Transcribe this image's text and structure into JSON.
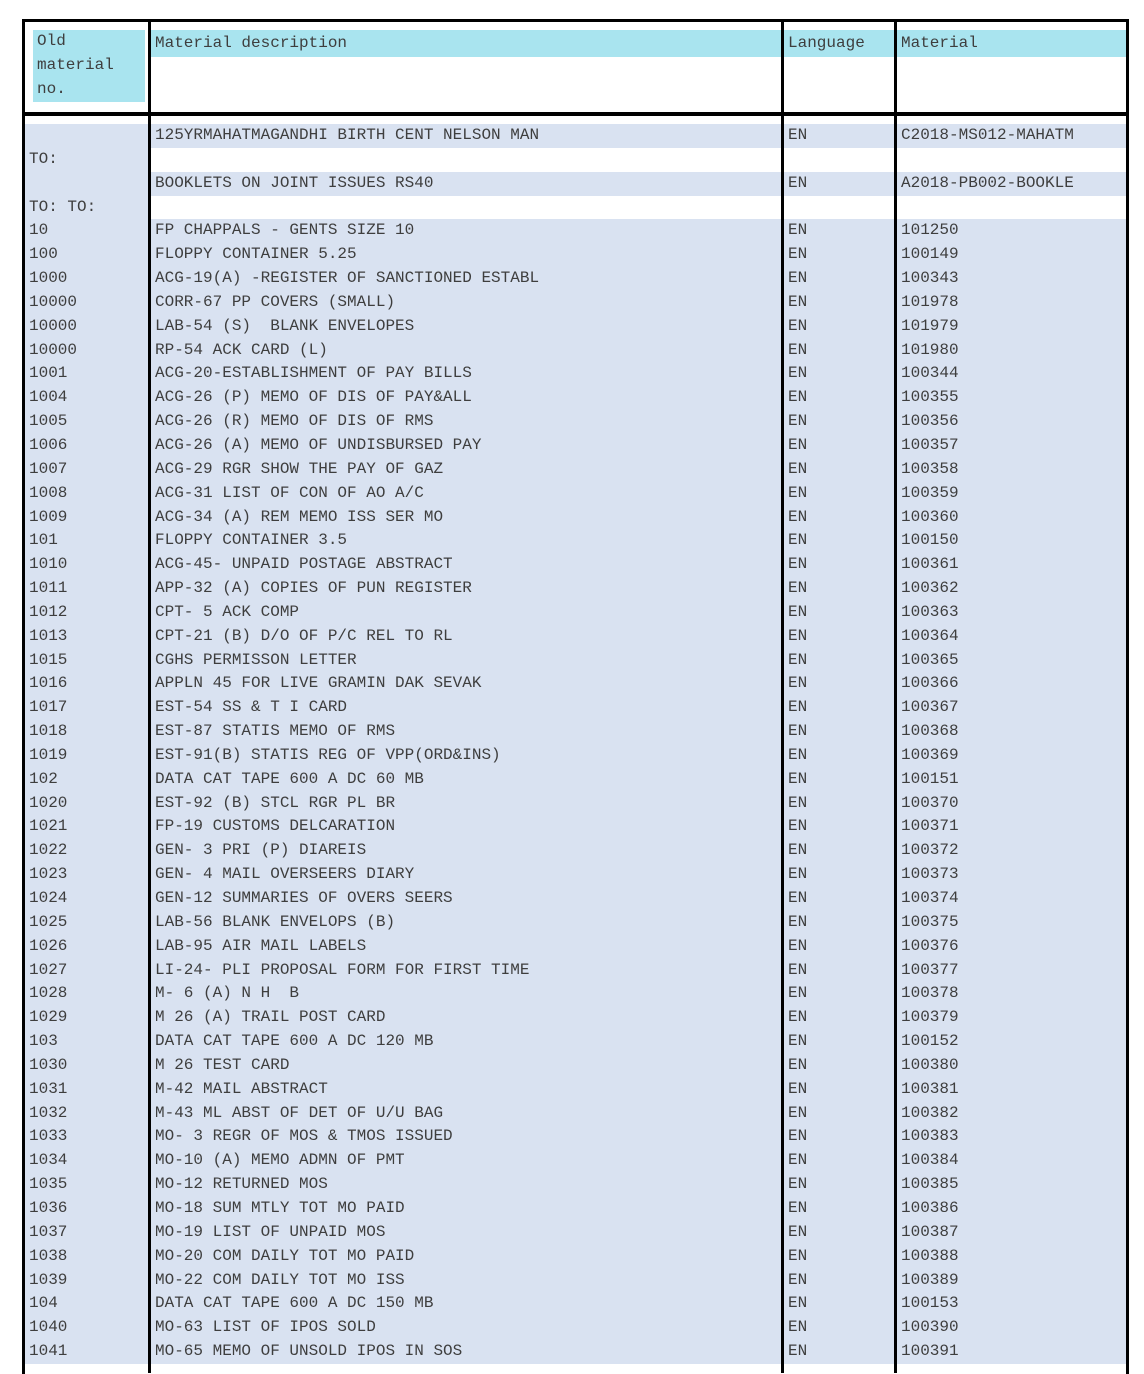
{
  "colors": {
    "header_highlight": "#a9e4ef",
    "row_highlight": "#d9e2f1",
    "border": "#000000",
    "text": "#3e3e3e"
  },
  "table": {
    "columns": [
      {
        "id": "old_no",
        "label": "Old\nmaterial\nno."
      },
      {
        "id": "description",
        "label": "Material description"
      },
      {
        "id": "language",
        "label": "Language"
      },
      {
        "id": "material",
        "label": "Material"
      }
    ],
    "special_rows": [
      {
        "old_no": "",
        "description": "125YRMAHATMAGANDHI BIRTH CENT NELSON MAN",
        "language": "EN",
        "material": "C2018-MS012-MAHATM"
      },
      {
        "old_no": "TO:",
        "description": "",
        "language": "",
        "material": ""
      },
      {
        "old_no": "",
        "description": "BOOKLETS ON JOINT ISSUES RS40",
        "language": "EN",
        "material": "A2018-PB002-BOOKLE"
      },
      {
        "old_no": "TO: TO:",
        "description": "",
        "language": "",
        "material": ""
      }
    ],
    "rows": [
      {
        "old_no": "10",
        "description": "FP CHAPPALS - GENTS SIZE 10",
        "language": "EN",
        "material": "101250"
      },
      {
        "old_no": "100",
        "description": "FLOPPY CONTAINER 5.25",
        "language": "EN",
        "material": "100149"
      },
      {
        "old_no": "1000",
        "description": "ACG-19(A) -REGISTER OF SANCTIONED ESTABL",
        "language": "EN",
        "material": "100343"
      },
      {
        "old_no": "10000",
        "description": "CORR-67 PP COVERS (SMALL)",
        "language": "EN",
        "material": "101978"
      },
      {
        "old_no": "10000",
        "description": "LAB-54 (S)  BLANK ENVELOPES",
        "language": "EN",
        "material": "101979"
      },
      {
        "old_no": "10000",
        "description": "RP-54 ACK CARD (L)",
        "language": "EN",
        "material": "101980"
      },
      {
        "old_no": "1001",
        "description": "ACG-20-ESTABLISHMENT OF PAY BILLS",
        "language": "EN",
        "material": "100344"
      },
      {
        "old_no": "1004",
        "description": "ACG-26 (P) MEMO OF DIS OF PAY&ALL",
        "language": "EN",
        "material": "100355"
      },
      {
        "old_no": "1005",
        "description": "ACG-26 (R) MEMO OF DIS OF RMS",
        "language": "EN",
        "material": "100356"
      },
      {
        "old_no": "1006",
        "description": "ACG-26 (A) MEMO OF UNDISBURSED PAY",
        "language": "EN",
        "material": "100357"
      },
      {
        "old_no": "1007",
        "description": "ACG-29 RGR SHOW THE PAY OF GAZ",
        "language": "EN",
        "material": "100358"
      },
      {
        "old_no": "1008",
        "description": "ACG-31 LIST OF CON OF AO A/C",
        "language": "EN",
        "material": "100359"
      },
      {
        "old_no": "1009",
        "description": "ACG-34 (A) REM MEMO ISS SER MO",
        "language": "EN",
        "material": "100360"
      },
      {
        "old_no": "101",
        "description": "FLOPPY CONTAINER 3.5",
        "language": "EN",
        "material": "100150"
      },
      {
        "old_no": "1010",
        "description": "ACG-45- UNPAID POSTAGE ABSTRACT",
        "language": "EN",
        "material": "100361"
      },
      {
        "old_no": "1011",
        "description": "APP-32 (A) COPIES OF PUN REGISTER",
        "language": "EN",
        "material": "100362"
      },
      {
        "old_no": "1012",
        "description": "CPT- 5 ACK COMP",
        "language": "EN",
        "material": "100363"
      },
      {
        "old_no": "1013",
        "description": "CPT-21 (B) D/O OF P/C REL TO RL",
        "language": "EN",
        "material": "100364"
      },
      {
        "old_no": "1015",
        "description": "CGHS PERMISSON LETTER",
        "language": "EN",
        "material": "100365"
      },
      {
        "old_no": "1016",
        "description": "APPLN 45 FOR LIVE GRAMIN DAK SEVAK",
        "language": "EN",
        "material": "100366"
      },
      {
        "old_no": "1017",
        "description": "EST-54 SS & T I CARD",
        "language": "EN",
        "material": "100367"
      },
      {
        "old_no": "1018",
        "description": "EST-87 STATIS MEMO OF RMS",
        "language": "EN",
        "material": "100368"
      },
      {
        "old_no": "1019",
        "description": "EST-91(B) STATIS REG OF VPP(ORD&INS)",
        "language": "EN",
        "material": "100369"
      },
      {
        "old_no": "102",
        "description": "DATA CAT TAPE 600 A DC 60 MB",
        "language": "EN",
        "material": "100151"
      },
      {
        "old_no": "1020",
        "description": "EST-92 (B) STCL RGR PL BR",
        "language": "EN",
        "material": "100370"
      },
      {
        "old_no": "1021",
        "description": "FP-19 CUSTOMS DELCARATION",
        "language": "EN",
        "material": "100371"
      },
      {
        "old_no": "1022",
        "description": "GEN- 3 PRI (P) DIAREIS",
        "language": "EN",
        "material": "100372"
      },
      {
        "old_no": "1023",
        "description": "GEN- 4 MAIL OVERSEERS DIARY",
        "language": "EN",
        "material": "100373"
      },
      {
        "old_no": "1024",
        "description": "GEN-12 SUMMARIES OF OVERS SEERS",
        "language": "EN",
        "material": "100374"
      },
      {
        "old_no": "1025",
        "description": "LAB-56 BLANK ENVELOPS (B)",
        "language": "EN",
        "material": "100375"
      },
      {
        "old_no": "1026",
        "description": "LAB-95 AIR MAIL LABELS",
        "language": "EN",
        "material": "100376"
      },
      {
        "old_no": "1027",
        "description": "LI-24- PLI PROPOSAL FORM FOR FIRST TIME",
        "language": "EN",
        "material": "100377"
      },
      {
        "old_no": "1028",
        "description": "M- 6 (A) N H  B",
        "language": "EN",
        "material": "100378"
      },
      {
        "old_no": "1029",
        "description": "M 26 (A) TRAIL POST CARD",
        "language": "EN",
        "material": "100379"
      },
      {
        "old_no": "103",
        "description": "DATA CAT TAPE 600 A DC 120 MB",
        "language": "EN",
        "material": "100152"
      },
      {
        "old_no": "1030",
        "description": "M 26 TEST CARD",
        "language": "EN",
        "material": "100380"
      },
      {
        "old_no": "1031",
        "description": "M-42 MAIL ABSTRACT",
        "language": "EN",
        "material": "100381"
      },
      {
        "old_no": "1032",
        "description": "M-43 ML ABST OF DET OF U/U BAG",
        "language": "EN",
        "material": "100382"
      },
      {
        "old_no": "1033",
        "description": "MO- 3 REGR OF MOS & TMOS ISSUED",
        "language": "EN",
        "material": "100383"
      },
      {
        "old_no": "1034",
        "description": "MO-10 (A) MEMO ADMN OF PMT",
        "language": "EN",
        "material": "100384"
      },
      {
        "old_no": "1035",
        "description": "MO-12 RETURNED MOS",
        "language": "EN",
        "material": "100385"
      },
      {
        "old_no": "1036",
        "description": "MO-18 SUM MTLY TOT MO PAID",
        "language": "EN",
        "material": "100386"
      },
      {
        "old_no": "1037",
        "description": "MO-19 LIST OF UNPAID MOS",
        "language": "EN",
        "material": "100387"
      },
      {
        "old_no": "1038",
        "description": "MO-20 COM DAILY TOT MO PAID",
        "language": "EN",
        "material": "100388"
      },
      {
        "old_no": "1039",
        "description": "MO-22 COM DAILY TOT MO ISS",
        "language": "EN",
        "material": "100389"
      },
      {
        "old_no": "104",
        "description": "DATA CAT TAPE 600 A DC 150 MB",
        "language": "EN",
        "material": "100153"
      },
      {
        "old_no": "1040",
        "description": "MO-63 LIST OF IPOS SOLD",
        "language": "EN",
        "material": "100390"
      },
      {
        "old_no": "1041",
        "description": "MO-65 MEMO OF UNSOLD IPOS IN SOS",
        "language": "EN",
        "material": "100391"
      }
    ]
  }
}
